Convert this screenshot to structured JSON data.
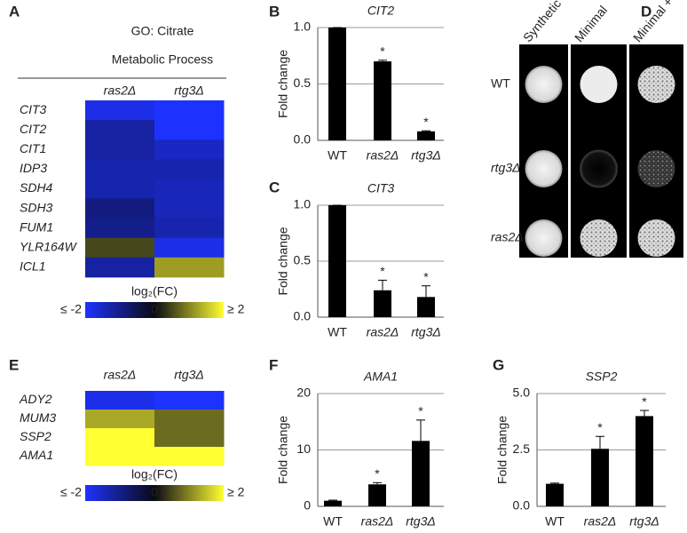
{
  "chart_data": [
    {
      "type": "heatmap",
      "panel": "A",
      "title_lines": [
        "GO: Citrate",
        "Metabolic Process"
      ],
      "columns": [
        "ras2Δ",
        "rtg3Δ"
      ],
      "rows": [
        "CIT3",
        "CIT2",
        "CIT1",
        "IDP3",
        "SDH4",
        "SDH3",
        "FUM1",
        "YLR164W",
        "ICL1"
      ],
      "values": [
        [
          -1.8,
          -2
        ],
        [
          -1.2,
          -2
        ],
        [
          -1.2,
          -1.5
        ],
        [
          -1.3,
          -1.3
        ],
        [
          -1.3,
          -1.4
        ],
        [
          -0.9,
          -1.4
        ],
        [
          -1.0,
          -1.3
        ],
        [
          0.5,
          -1.8
        ],
        [
          -1.2,
          1.2
        ]
      ],
      "colorbar_label": "log₂(FC)",
      "clim": [
        -2,
        2
      ],
      "cticks": [
        {
          "value": -2,
          "label": "≤ -2"
        },
        0,
        {
          "value": 2,
          "label": "≥ 2"
        }
      ]
    },
    {
      "type": "bar",
      "panel": "B",
      "title": "CIT2",
      "ylabel": "Fold change",
      "categories": [
        "WT",
        "ras2Δ",
        "rtg3Δ"
      ],
      "values": [
        1.0,
        0.7,
        0.08
      ],
      "errors": [
        0,
        0.01,
        0.005
      ],
      "significance": [
        null,
        "*",
        "*"
      ],
      "color": "#000000",
      "ylim": [
        0,
        1
      ],
      "yticks": [
        {
          "value": 0,
          "label": "0.0"
        },
        {
          "value": 0.5,
          "label": "0.5"
        },
        {
          "value": 1,
          "label": "1.0"
        }
      ],
      "grid": true
    },
    {
      "type": "bar",
      "panel": "C",
      "title": "CIT3",
      "ylabel": "Fold change",
      "categories": [
        "WT",
        "ras2Δ",
        "rtg3Δ"
      ],
      "values": [
        1.0,
        0.24,
        0.18
      ],
      "errors": [
        0,
        0.09,
        0.1
      ],
      "significance": [
        null,
        "*",
        "*"
      ],
      "color": "#000000",
      "ylim": [
        0,
        1
      ],
      "yticks": [
        {
          "value": 0,
          "label": "0.0"
        },
        {
          "value": 0.5,
          "label": "0.5"
        },
        {
          "value": 1,
          "label": "1.0"
        }
      ],
      "grid": true
    },
    {
      "type": "spots",
      "panel": "D",
      "columns": [
        "Synthetic",
        "Minimal",
        "Minimal + Glu"
      ],
      "rows": [
        "WT",
        "rtg3Δ",
        "ras2Δ"
      ]
    },
    {
      "type": "heatmap",
      "panel": "E",
      "columns": [
        "ras2Δ",
        "rtg3Δ"
      ],
      "rows": [
        "ADY2",
        "MUM3",
        "SSP2",
        "AMA1"
      ],
      "values": [
        [
          -1.8,
          -2
        ],
        [
          1.3,
          0.8
        ],
        [
          2,
          0.8
        ],
        [
          2,
          2
        ]
      ],
      "colorbar_label": "log₂(FC)",
      "clim": [
        -2,
        2
      ],
      "cticks": [
        {
          "value": -2,
          "label": "≤ -2"
        },
        0,
        {
          "value": 2,
          "label": "≥ 2"
        }
      ]
    },
    {
      "type": "bar",
      "panel": "F",
      "title": "AMA1",
      "ylabel": "Fold change",
      "categories": [
        "WT",
        "ras2Δ",
        "rtg3Δ"
      ],
      "values": [
        1.0,
        3.9,
        11.6
      ],
      "errors": [
        0.1,
        0.3,
        3.7
      ],
      "significance": [
        null,
        "*",
        "*"
      ],
      "color": "#000000",
      "ylim": [
        0,
        20
      ],
      "yticks": [
        0,
        10,
        20
      ],
      "grid": true
    },
    {
      "type": "bar",
      "panel": "G",
      "title": "SSP2",
      "ylabel": "Fold change",
      "categories": [
        "WT",
        "ras2Δ",
        "rtg3Δ"
      ],
      "values": [
        1.0,
        2.55,
        4.0
      ],
      "errors": [
        0.03,
        0.55,
        0.25
      ],
      "significance": [
        null,
        "*",
        "*"
      ],
      "color": "#000000",
      "ylim": [
        0,
        5
      ],
      "yticks": [
        {
          "value": 0,
          "label": "0.0"
        },
        {
          "value": 2.5,
          "label": "2.5"
        },
        {
          "value": 5,
          "label": "5.0"
        }
      ],
      "grid": true
    }
  ]
}
